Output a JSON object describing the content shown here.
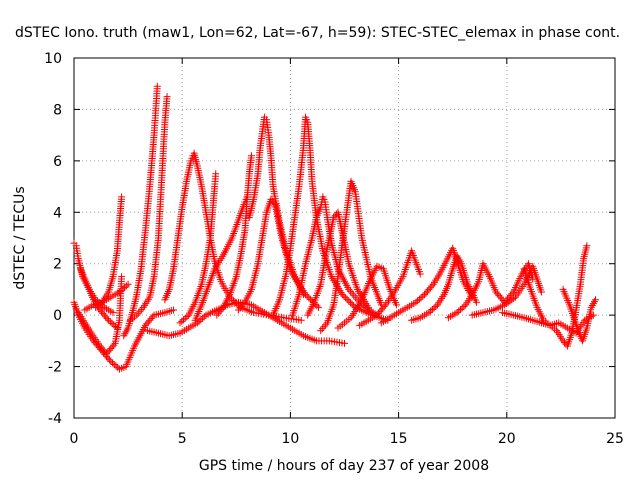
{
  "chart_data": {
    "type": "scatter",
    "title": "dSTEC Iono. truth (maw1, Lon=62, Lat=-67, h=59): STEC-STEC_elemax in phase cont.",
    "xlabel": "GPS time / hours of day 237 of year 2008",
    "ylabel": "dSTEC  / TECUs",
    "xlim": [
      0,
      25
    ],
    "ylim": [
      -4,
      10
    ],
    "x_ticks": [
      "0",
      "5",
      "10",
      "15",
      "20",
      "25"
    ],
    "y_ticks": [
      "-4",
      "-2",
      "0",
      "2",
      "4",
      "6",
      "8",
      "10"
    ],
    "grid": true,
    "marker": "+",
    "color": "#ff0000",
    "arcs": [
      {
        "x": [
          0.0,
          0.1,
          0.2,
          0.4,
          0.7,
          1.0,
          1.4,
          1.8
        ],
        "y": [
          2.8,
          2.7,
          2.2,
          1.5,
          1.0,
          0.6,
          0.3,
          0.1
        ]
      },
      {
        "x": [
          0.0,
          0.2,
          0.5,
          0.9,
          1.3,
          1.7,
          2.1,
          2.4,
          2.8,
          3.3,
          3.7,
          4.2,
          4.6
        ],
        "y": [
          0.5,
          0.0,
          -0.5,
          -1.0,
          -1.4,
          -1.8,
          -2.1,
          -2.0,
          -1.2,
          -0.4,
          0.0,
          0.1,
          0.2
        ]
      },
      {
        "x": [
          0.2,
          0.5,
          0.8,
          1.2,
          1.5,
          1.9,
          2.1,
          2.2
        ],
        "y": [
          0.1,
          -0.3,
          -0.7,
          -1.2,
          -1.5,
          -1.1,
          -0.2,
          1.5
        ]
      },
      {
        "x": [
          0.3,
          0.5,
          0.7,
          0.9,
          1.2,
          1.6,
          2.0
        ],
        "y": [
          1.8,
          1.4,
          1.0,
          0.6,
          0.2,
          -0.2,
          -0.5
        ]
      },
      {
        "x": [
          1.0,
          1.3,
          1.6,
          1.8,
          2.0,
          2.1,
          2.2
        ],
        "y": [
          0.3,
          0.5,
          0.9,
          1.5,
          2.5,
          3.6,
          4.6
        ]
      },
      {
        "x": [
          0.5,
          0.9,
          1.3,
          1.7,
          2.1,
          2.5
        ],
        "y": [
          0.2,
          0.4,
          0.5,
          0.7,
          0.9,
          1.2
        ]
      },
      {
        "x": [
          2.3,
          2.5,
          2.7,
          2.9,
          3.1,
          3.3,
          3.5,
          3.7,
          3.85
        ],
        "y": [
          -0.8,
          -0.5,
          0.1,
          0.8,
          1.8,
          3.3,
          5.0,
          7.0,
          8.9
        ]
      },
      {
        "x": [
          2.6,
          2.9,
          3.2,
          3.5,
          3.7,
          3.9,
          4.0,
          4.1,
          4.2,
          4.3
        ],
        "y": [
          -0.2,
          0.0,
          0.3,
          0.7,
          1.5,
          3.0,
          4.5,
          6.0,
          7.5,
          8.5
        ]
      },
      {
        "x": [
          3.4,
          3.9,
          4.4,
          4.9,
          5.3,
          5.7,
          6.1,
          6.6,
          7.1,
          7.6,
          8.2,
          8.8,
          9.4,
          10.0,
          10.6,
          11.2,
          11.8,
          12.5
        ],
        "y": [
          -0.6,
          -0.7,
          -0.8,
          -0.7,
          -0.5,
          -0.3,
          0.0,
          0.2,
          0.4,
          0.5,
          0.4,
          0.1,
          -0.2,
          -0.5,
          -0.8,
          -1.0,
          -1.0,
          -1.1
        ]
      },
      {
        "x": [
          4.2,
          4.4,
          4.6,
          4.8,
          5.0,
          5.2,
          5.4,
          5.55,
          5.7,
          5.9,
          6.1,
          6.3,
          6.5,
          6.8,
          7.2,
          7.7,
          8.3,
          9.0,
          9.7,
          10.5
        ],
        "y": [
          0.6,
          1.0,
          1.8,
          3.0,
          4.2,
          5.2,
          6.0,
          6.3,
          5.8,
          5.0,
          4.0,
          3.0,
          2.1,
          1.3,
          0.7,
          0.3,
          0.1,
          0.0,
          -0.1,
          -0.2
        ]
      },
      {
        "x": [
          4.9,
          5.3,
          5.6,
          5.9,
          6.1,
          6.3,
          6.4,
          6.5,
          6.55
        ],
        "y": [
          -0.3,
          0.0,
          0.5,
          1.2,
          2.0,
          3.0,
          4.0,
          5.0,
          5.5
        ]
      },
      {
        "x": [
          5.6,
          5.9,
          6.2,
          6.5,
          6.8,
          7.0,
          7.3,
          7.6,
          7.85,
          8.0
        ],
        "y": [
          -0.2,
          0.4,
          1.1,
          1.8,
          2.2,
          2.5,
          3.0,
          3.7,
          4.3,
          4.6
        ]
      },
      {
        "x": [
          6.6,
          6.9,
          7.2,
          7.5,
          7.7,
          7.9,
          8.0,
          8.1,
          8.2
        ],
        "y": [
          0.0,
          0.3,
          0.8,
          1.5,
          2.3,
          3.3,
          4.5,
          5.5,
          6.2
        ]
      },
      {
        "x": [
          8.1,
          8.3,
          8.5,
          8.6,
          8.8,
          8.9,
          9.0,
          9.1,
          9.2,
          9.5,
          9.8,
          10.2,
          10.7,
          11.3
        ],
        "y": [
          3.8,
          4.5,
          5.5,
          6.5,
          7.7,
          7.6,
          7.0,
          6.2,
          5.0,
          3.6,
          2.5,
          1.5,
          0.8,
          0.3
        ]
      },
      {
        "x": [
          7.6,
          7.9,
          8.2,
          8.5,
          8.7,
          8.9,
          9.1,
          9.3,
          9.6,
          10.0,
          10.6
        ],
        "y": [
          0.2,
          0.5,
          1.0,
          2.0,
          3.0,
          4.0,
          4.5,
          4.3,
          3.0,
          1.8,
          0.8
        ]
      },
      {
        "x": [
          9.2,
          9.5,
          9.8,
          10.0,
          10.2,
          10.4,
          10.6,
          10.7,
          10.8,
          10.9,
          11.0,
          11.2,
          11.5,
          11.9,
          12.4,
          13.0,
          13.8,
          14.5
        ],
        "y": [
          0.0,
          0.6,
          1.6,
          2.6,
          3.8,
          5.0,
          6.5,
          7.7,
          7.5,
          6.5,
          5.2,
          3.8,
          2.5,
          1.5,
          0.8,
          0.3,
          0.0,
          -0.2
        ]
      },
      {
        "x": [
          10.1,
          10.4,
          10.7,
          11.0,
          11.2,
          11.4,
          11.5,
          11.6,
          11.7,
          11.9,
          12.2,
          12.7,
          13.3,
          14.0
        ],
        "y": [
          0.0,
          0.8,
          2.0,
          3.0,
          3.8,
          4.2,
          4.6,
          4.4,
          3.8,
          2.8,
          1.8,
          1.0,
          0.4,
          0.0
        ]
      },
      {
        "x": [
          10.8,
          11.1,
          11.4,
          11.6,
          11.8,
          12.0,
          12.2,
          12.4,
          12.7,
          13.1,
          13.6
        ],
        "y": [
          0.0,
          0.5,
          1.2,
          2.2,
          3.0,
          3.8,
          4.0,
          3.2,
          2.0,
          1.0,
          0.3
        ]
      },
      {
        "x": [
          11.4,
          11.7,
          12.0,
          12.2,
          12.4,
          12.6,
          12.8,
          13.0,
          13.3,
          13.7,
          14.2
        ],
        "y": [
          -0.6,
          -0.3,
          0.4,
          1.5,
          2.8,
          4.0,
          5.2,
          4.8,
          3.0,
          1.5,
          0.4
        ]
      },
      {
        "x": [
          12.2,
          12.5,
          12.8,
          13.1,
          13.4,
          13.7,
          14.0,
          14.3,
          14.6,
          14.9
        ],
        "y": [
          -0.5,
          -0.3,
          -0.1,
          0.3,
          0.8,
          1.4,
          1.9,
          1.8,
          1.0,
          0.4
        ]
      },
      {
        "x": [
          13.2,
          13.6,
          14.0,
          14.4,
          14.8,
          15.2,
          15.6,
          16.0
        ],
        "y": [
          -0.4,
          -0.2,
          0.0,
          0.4,
          0.9,
          1.5,
          2.5,
          1.6
        ]
      },
      {
        "x": [
          14.2,
          14.6,
          15.0,
          15.4,
          15.8,
          16.2,
          16.6,
          16.9,
          17.2,
          17.5,
          17.7,
          18.0,
          18.4
        ],
        "y": [
          -0.3,
          -0.1,
          0.1,
          0.3,
          0.5,
          0.8,
          1.2,
          1.6,
          2.1,
          2.6,
          2.1,
          1.3,
          0.7
        ]
      },
      {
        "x": [
          15.6,
          16.0,
          16.4,
          16.8,
          17.1,
          17.3,
          17.5,
          17.7,
          17.9,
          18.2,
          18.6
        ],
        "y": [
          -0.2,
          -0.1,
          0.1,
          0.4,
          0.8,
          1.2,
          1.8,
          2.3,
          2.0,
          1.2,
          0.5
        ]
      },
      {
        "x": [
          17.3,
          17.7,
          18.1,
          18.4,
          18.7,
          18.9,
          19.2,
          19.5,
          19.9,
          20.3,
          20.7,
          21.0,
          21.2
        ],
        "y": [
          -0.1,
          0.1,
          0.4,
          0.8,
          1.3,
          2.0,
          1.5,
          0.9,
          0.5,
          0.9,
          1.6,
          2.0,
          1.4
        ]
      },
      {
        "x": [
          18.4,
          18.9,
          19.4,
          19.9,
          20.4,
          20.8,
          21.2,
          21.4,
          21.6
        ],
        "y": [
          0.0,
          0.1,
          0.2,
          0.4,
          0.7,
          1.2,
          1.9,
          1.4,
          0.9
        ]
      },
      {
        "x": [
          19.8,
          20.3,
          20.8,
          21.2,
          21.6,
          22.0,
          22.4,
          22.8,
          23.2,
          23.6,
          24.0
        ],
        "y": [
          0.1,
          0.0,
          -0.1,
          -0.2,
          -0.3,
          -0.4,
          -0.3,
          -0.5,
          -0.7,
          -0.2,
          0.0
        ]
      },
      {
        "x": [
          20.8,
          21.1,
          21.4,
          21.7,
          22.0,
          22.3,
          22.6,
          22.8,
          23.0,
          23.2,
          23.4,
          23.55,
          23.7
        ],
        "y": [
          1.8,
          1.0,
          0.3,
          -0.2,
          -0.4,
          -0.6,
          -1.0,
          -1.2,
          -0.7,
          0.2,
          1.2,
          2.2,
          2.7
        ]
      },
      {
        "x": [
          22.6,
          22.9,
          23.1,
          23.3,
          23.5,
          23.7,
          23.9,
          24.1
        ],
        "y": [
          1.0,
          0.4,
          -0.1,
          -0.6,
          -1.0,
          -0.5,
          0.3,
          0.6
        ]
      }
    ]
  }
}
